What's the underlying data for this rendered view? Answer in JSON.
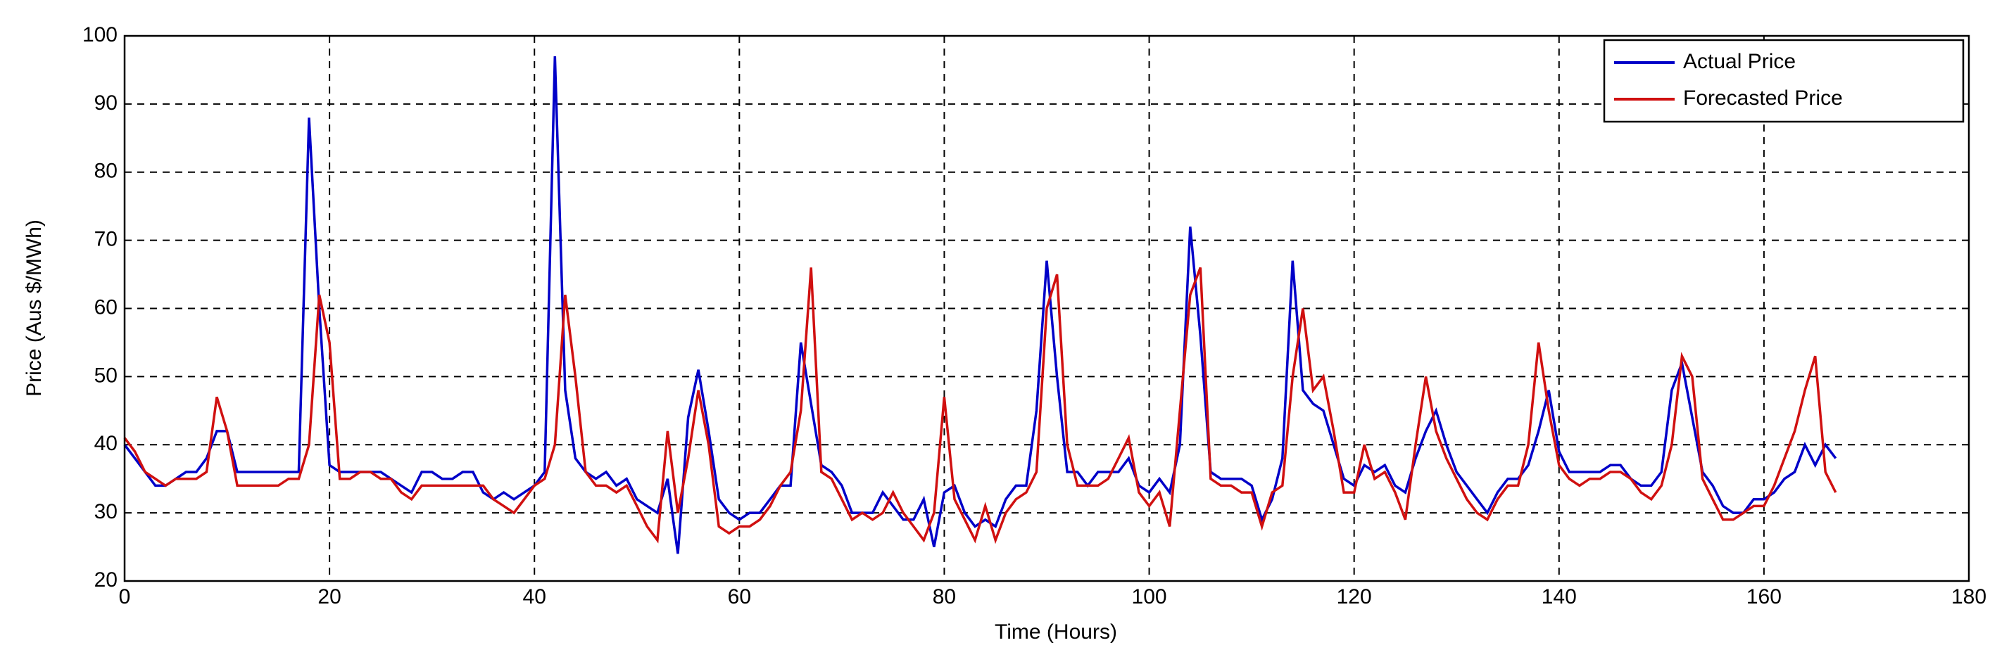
{
  "chart_data": {
    "type": "line",
    "x_label": "Time (Hours)",
    "y_label": "Price (Aus $/MWh)",
    "x": [
      0,
      1,
      2,
      3,
      4,
      5,
      6,
      7,
      8,
      9,
      10,
      11,
      12,
      13,
      14,
      15,
      16,
      17,
      18,
      19,
      20,
      21,
      22,
      23,
      24,
      25,
      26,
      27,
      28,
      29,
      30,
      31,
      32,
      33,
      34,
      35,
      36,
      37,
      38,
      39,
      40,
      41,
      42,
      43,
      44,
      45,
      46,
      47,
      48,
      49,
      50,
      51,
      52,
      53,
      54,
      55,
      56,
      57,
      58,
      59,
      60,
      61,
      62,
      63,
      64,
      65,
      66,
      67,
      68,
      69,
      70,
      71,
      72,
      73,
      74,
      75,
      76,
      77,
      78,
      79,
      80,
      81,
      82,
      83,
      84,
      85,
      86,
      87,
      88,
      89,
      90,
      91,
      92,
      93,
      94,
      95,
      96,
      97,
      98,
      99,
      100,
      101,
      102,
      103,
      104,
      105,
      106,
      107,
      108,
      109,
      110,
      111,
      112,
      113,
      114,
      115,
      116,
      117,
      118,
      119,
      120,
      121,
      122,
      123,
      124,
      125,
      126,
      127,
      128,
      129,
      130,
      131,
      132,
      133,
      134,
      135,
      136,
      137,
      138,
      139,
      140,
      141,
      142,
      143,
      144,
      145,
      146,
      147,
      148,
      149,
      150,
      151,
      152,
      153,
      154,
      155,
      156,
      157,
      158,
      159,
      160,
      161,
      162,
      163,
      164,
      165,
      166,
      167
    ],
    "series": [
      {
        "name": "Actual Price",
        "color": "#0000c8",
        "values": [
          40,
          38,
          36,
          34,
          34,
          35,
          36,
          36,
          38,
          42,
          42,
          36,
          36,
          36,
          36,
          36,
          36,
          36,
          88,
          60,
          37,
          36,
          36,
          36,
          36,
          36,
          35,
          34,
          33,
          36,
          36,
          35,
          35,
          36,
          36,
          33,
          32,
          33,
          32,
          33,
          34,
          36,
          97,
          48,
          38,
          36,
          35,
          36,
          34,
          35,
          32,
          31,
          30,
          35,
          24,
          44,
          51,
          42,
          32,
          30,
          29,
          30,
          30,
          32,
          34,
          34,
          55,
          46,
          37,
          36,
          34,
          30,
          30,
          30,
          33,
          31,
          29,
          29,
          32,
          25,
          33,
          34,
          30,
          28,
          29,
          28,
          32,
          34,
          34,
          45,
          67,
          50,
          36,
          36,
          34,
          36,
          36,
          36,
          38,
          34,
          33,
          35,
          33,
          40,
          72,
          56,
          36,
          35,
          35,
          35,
          34,
          29,
          32,
          38,
          67,
          48,
          46,
          45,
          40,
          35,
          34,
          37,
          36,
          37,
          34,
          33,
          38,
          42,
          45,
          40,
          36,
          34,
          32,
          30,
          33,
          35,
          35,
          37,
          42,
          48,
          39,
          36,
          36,
          36,
          36,
          37,
          37,
          35,
          34,
          34,
          36,
          48,
          52,
          44,
          36,
          34,
          31,
          30,
          30,
          32,
          32,
          33,
          35,
          36,
          40,
          37,
          40,
          38
        ]
      },
      {
        "name": "Forecasted Price",
        "color": "#d01010",
        "values": [
          41,
          39,
          36,
          35,
          34,
          35,
          35,
          35,
          36,
          47,
          42,
          34,
          34,
          34,
          34,
          34,
          35,
          35,
          40,
          62,
          55,
          35,
          35,
          36,
          36,
          35,
          35,
          33,
          32,
          34,
          34,
          34,
          34,
          34,
          34,
          34,
          32,
          31,
          30,
          32,
          34,
          35,
          40,
          62,
          50,
          36,
          34,
          34,
          33,
          34,
          31,
          28,
          26,
          42,
          30,
          38,
          48,
          40,
          28,
          27,
          28,
          28,
          29,
          31,
          34,
          36,
          45,
          66,
          36,
          35,
          32,
          29,
          30,
          29,
          30,
          33,
          30,
          28,
          26,
          30,
          47,
          32,
          29,
          26,
          31,
          26,
          30,
          32,
          33,
          36,
          60,
          65,
          40,
          34,
          34,
          34,
          35,
          38,
          41,
          33,
          31,
          33,
          28,
          45,
          62,
          66,
          35,
          34,
          34,
          33,
          33,
          28,
          33,
          34,
          50,
          60,
          48,
          50,
          42,
          33,
          33,
          40,
          35,
          36,
          33,
          29,
          40,
          50,
          42,
          38,
          35,
          32,
          30,
          29,
          32,
          34,
          34,
          40,
          55,
          45,
          37,
          35,
          34,
          35,
          35,
          36,
          36,
          35,
          33,
          32,
          34,
          40,
          53,
          50,
          35,
          32,
          29,
          29,
          30,
          31,
          31,
          34,
          38,
          42,
          48,
          53,
          36,
          33
        ]
      }
    ],
    "xlim": [
      0,
      180
    ],
    "xticks": [
      0,
      20,
      40,
      60,
      80,
      100,
      120,
      140,
      160,
      180
    ],
    "ylim": [
      20,
      100
    ],
    "yticks": [
      20,
      30,
      40,
      50,
      60,
      70,
      80,
      90,
      100
    ],
    "grid": true,
    "legend": "upper right"
  }
}
